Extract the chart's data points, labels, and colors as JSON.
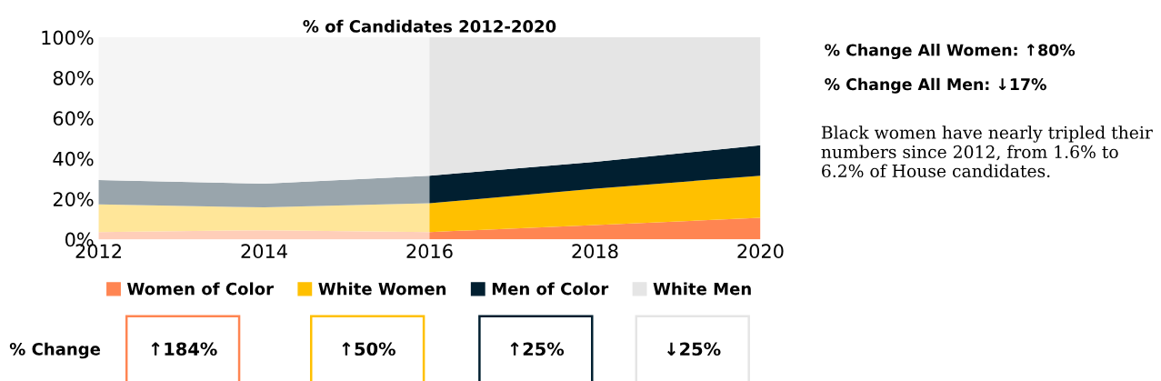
{
  "chart_data": {
    "type": "area",
    "stacked": true,
    "title": "% of Candidates 2012-2020",
    "x": [
      2012,
      2014,
      2016,
      2018,
      2020
    ],
    "series": [
      {
        "name": "Women of Color",
        "color": "#ff8552",
        "values": [
          3.6,
          4.5,
          3.6,
          7,
          10.6
        ]
      },
      {
        "name": "White Women",
        "color": "#ffc000",
        "values": [
          13.7,
          11.3,
          14.2,
          18,
          20.9
        ]
      },
      {
        "name": "Men of Color",
        "color": "#011f30",
        "values": [
          12,
          11.7,
          13.7,
          13.3,
          15.1
        ]
      },
      {
        "name": "White Men",
        "color": "#e5e5e5",
        "values": [
          70.7,
          72.5,
          68.5,
          61.7,
          53.4
        ]
      }
    ],
    "xlim": [
      2012,
      2020
    ],
    "xticks": [
      2012,
      2014,
      2016,
      2018,
      2020
    ],
    "ylim": [
      0,
      100
    ],
    "yticks": [
      {
        "value": 0,
        "label": "0%"
      },
      {
        "value": 20,
        "label": "20%"
      },
      {
        "value": 40,
        "label": "40%"
      },
      {
        "value": 60,
        "label": "60%"
      },
      {
        "value": 80,
        "label": "80%"
      },
      {
        "value": 100,
        "label": "100%"
      }
    ],
    "bands": [
      {
        "axis": "x",
        "from": 2012,
        "to": 2016,
        "color": "#ffffff"
      }
    ],
    "legend": "bottom",
    "grid": false,
    "annotations": [
      "% Change All Women: ↑80%",
      "% Change All Men: ↓17%",
      "Black women have nearly tripled their numbers since 2012, from 1.6% to 6.2% of House candidates.",
      "% Change",
      "↑184%",
      "↑50%",
      "↑25%",
      "↓25%"
    ]
  }
}
